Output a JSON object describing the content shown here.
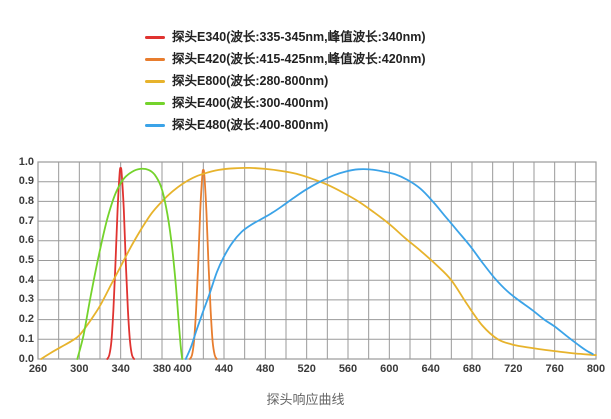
{
  "chart_data": {
    "type": "line",
    "title": "探头响应曲线",
    "xlabel": "",
    "ylabel": "",
    "x_unit": "nm",
    "xlim": [
      260,
      800
    ],
    "ylim": [
      0,
      1
    ],
    "grid": true,
    "x_gridline_step": 20,
    "y_gridline_step": 0.1,
    "legend_position": "top",
    "colors": {
      "grid": "#9a9a9a",
      "axis_text": "#3a3a3a",
      "caption_text": "#666666",
      "background": "#ffffff"
    },
    "x_tick_labels": [
      260,
      300,
      340,
      380,
      400,
      440,
      480,
      520,
      560,
      600,
      640,
      680,
      720,
      760,
      800
    ],
    "y_ticks": [
      {
        "label": "1.0",
        "value": 1.0
      },
      {
        "label": "0.9",
        "value": 0.9
      },
      {
        "label": "0.8",
        "value": 0.8
      },
      {
        "label": "0.7",
        "value": 0.7
      },
      {
        "label": "0.6",
        "value": 0.6
      },
      {
        "label": "0.5",
        "value": 0.5
      },
      {
        "label": "0.4",
        "value": 0.4
      },
      {
        "label": "0.3",
        "value": 0.3
      },
      {
        "label": "0.2",
        "value": 0.2
      },
      {
        "label": "0.1",
        "value": 0.1
      },
      {
        "label": "0.0",
        "value": 0.0
      }
    ],
    "series": [
      {
        "id": "e340",
        "name": "探头E340(波长:335-345nm,峰值波长:340nm)",
        "color": "#e03330",
        "points": [
          [
            327,
            0
          ],
          [
            329,
            0.02
          ],
          [
            331,
            0.09
          ],
          [
            333,
            0.25
          ],
          [
            335,
            0.49
          ],
          [
            337,
            0.76
          ],
          [
            339,
            0.94
          ],
          [
            340,
            0.97
          ],
          [
            341,
            0.94
          ],
          [
            343,
            0.76
          ],
          [
            345,
            0.49
          ],
          [
            347,
            0.25
          ],
          [
            349,
            0.09
          ],
          [
            351,
            0.02
          ],
          [
            353,
            0
          ]
        ]
      },
      {
        "id": "e420",
        "name": "探头E420(波长:415-425nm,峰值波长:420nm)",
        "color": "#e87d2e",
        "points": [
          [
            407,
            0
          ],
          [
            409,
            0.02
          ],
          [
            411,
            0.09
          ],
          [
            413,
            0.25
          ],
          [
            415,
            0.48
          ],
          [
            417,
            0.75
          ],
          [
            419,
            0.93
          ],
          [
            420,
            0.96
          ],
          [
            421,
            0.93
          ],
          [
            423,
            0.75
          ],
          [
            425,
            0.48
          ],
          [
            427,
            0.25
          ],
          [
            429,
            0.09
          ],
          [
            431,
            0.02
          ],
          [
            433,
            0
          ]
        ]
      },
      {
        "id": "e800",
        "name": "探头E800(波长:280-800nm)",
        "color": "#e7b32c",
        "points": [
          [
            263,
            0
          ],
          [
            272,
            0.03
          ],
          [
            282,
            0.06
          ],
          [
            292,
            0.09
          ],
          [
            300,
            0.12
          ],
          [
            310,
            0.19
          ],
          [
            320,
            0.27
          ],
          [
            330,
            0.37
          ],
          [
            340,
            0.47
          ],
          [
            350,
            0.57
          ],
          [
            360,
            0.66
          ],
          [
            370,
            0.74
          ],
          [
            380,
            0.8
          ],
          [
            390,
            0.85
          ],
          [
            400,
            0.89
          ],
          [
            410,
            0.92
          ],
          [
            420,
            0.94
          ],
          [
            435,
            0.96
          ],
          [
            450,
            0.968
          ],
          [
            465,
            0.97
          ],
          [
            480,
            0.965
          ],
          [
            495,
            0.955
          ],
          [
            510,
            0.94
          ],
          [
            525,
            0.915
          ],
          [
            540,
            0.885
          ],
          [
            555,
            0.845
          ],
          [
            570,
            0.8
          ],
          [
            585,
            0.745
          ],
          [
            600,
            0.685
          ],
          [
            615,
            0.615
          ],
          [
            630,
            0.55
          ],
          [
            645,
            0.48
          ],
          [
            660,
            0.4
          ],
          [
            675,
            0.28
          ],
          [
            690,
            0.17
          ],
          [
            705,
            0.1
          ],
          [
            718,
            0.075
          ],
          [
            730,
            0.062
          ],
          [
            745,
            0.05
          ],
          [
            760,
            0.04
          ],
          [
            780,
            0.028
          ],
          [
            800,
            0.02
          ]
        ]
      },
      {
        "id": "e400",
        "name": "探头E400(波长:300-400nm)",
        "color": "#74d32c",
        "points": [
          [
            298,
            0
          ],
          [
            304,
            0.12
          ],
          [
            311,
            0.32
          ],
          [
            319,
            0.53
          ],
          [
            327,
            0.71
          ],
          [
            335,
            0.84
          ],
          [
            343,
            0.915
          ],
          [
            351,
            0.95
          ],
          [
            359,
            0.965
          ],
          [
            367,
            0.96
          ],
          [
            373,
            0.935
          ],
          [
            379,
            0.875
          ],
          [
            384,
            0.77
          ],
          [
            389,
            0.6
          ],
          [
            393,
            0.4
          ],
          [
            396,
            0.2
          ],
          [
            398,
            0.07
          ],
          [
            399.5,
            0
          ]
        ]
      },
      {
        "id": "e480",
        "name": "探头E480(波长:400-800nm)",
        "color": "#3ba3e8",
        "points": [
          [
            403,
            0
          ],
          [
            408,
            0.06
          ],
          [
            413,
            0.14
          ],
          [
            419,
            0.23
          ],
          [
            426,
            0.33
          ],
          [
            433,
            0.44
          ],
          [
            440,
            0.52
          ],
          [
            448,
            0.59
          ],
          [
            457,
            0.645
          ],
          [
            466,
            0.68
          ],
          [
            476,
            0.71
          ],
          [
            486,
            0.74
          ],
          [
            496,
            0.775
          ],
          [
            508,
            0.82
          ],
          [
            520,
            0.862
          ],
          [
            533,
            0.9
          ],
          [
            546,
            0.932
          ],
          [
            558,
            0.952
          ],
          [
            570,
            0.963
          ],
          [
            582,
            0.962
          ],
          [
            594,
            0.952
          ],
          [
            606,
            0.937
          ],
          [
            618,
            0.908
          ],
          [
            630,
            0.865
          ],
          [
            642,
            0.8
          ],
          [
            654,
            0.725
          ],
          [
            666,
            0.65
          ],
          [
            678,
            0.575
          ],
          [
            690,
            0.49
          ],
          [
            702,
            0.41
          ],
          [
            714,
            0.345
          ],
          [
            726,
            0.295
          ],
          [
            738,
            0.25
          ],
          [
            750,
            0.2
          ],
          [
            760,
            0.165
          ],
          [
            772,
            0.115
          ],
          [
            782,
            0.075
          ],
          [
            790,
            0.045
          ],
          [
            797,
            0.025
          ]
        ]
      }
    ]
  }
}
